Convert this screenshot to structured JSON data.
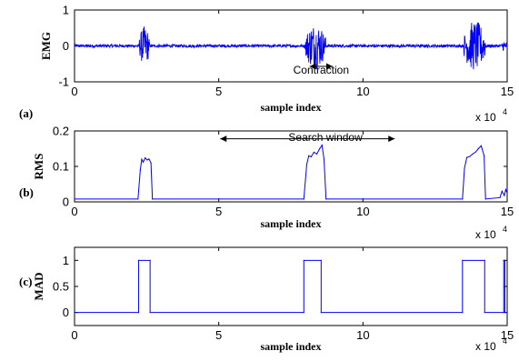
{
  "chart_data": [
    {
      "type": "line",
      "panel_label": "(a)",
      "xlabel": "sample index",
      "ylabel": "EMG",
      "x_multiplier": "x 10",
      "x_multiplier_exp": "4",
      "xlim": [
        0,
        15
      ],
      "ylim": [
        -1,
        1
      ],
      "xticks": [
        "0",
        "5",
        "10",
        "15"
      ],
      "yticks": [
        "-1",
        "0",
        "1"
      ],
      "series_color": "#0000ff",
      "bursts": [
        {
          "start": 2.25,
          "end": 2.6,
          "amplitude": 0.55
        },
        {
          "start": 8.0,
          "end": 8.7,
          "amplitude": 0.65
        },
        {
          "start": 13.5,
          "end": 14.25,
          "amplitude": 0.7
        },
        {
          "start": 14.8,
          "end": 15.0,
          "amplitude": 0.15
        }
      ],
      "baseline_noise": 0.04,
      "annotations": [
        {
          "text": "Contraction",
          "x": 8.55,
          "y": -0.65
        }
      ],
      "arrow": {
        "x1": 8.15,
        "x2": 8.95,
        "y": -0.57
      }
    },
    {
      "type": "line",
      "panel_label": "(b)",
      "xlabel": "sample index",
      "ylabel": "RMS",
      "x_multiplier": "x 10",
      "x_multiplier_exp": "4",
      "xlim": [
        0,
        15
      ],
      "ylim": [
        0,
        0.2
      ],
      "xticks": [
        "0",
        "5",
        "10",
        "15"
      ],
      "yticks": [
        "0",
        "0.1",
        "0.2"
      ],
      "series_color": "#0000ff",
      "x": [
        0,
        2.2,
        2.28,
        2.33,
        2.38,
        2.45,
        2.52,
        2.58,
        2.65,
        2.7,
        7.95,
        8.05,
        8.12,
        8.2,
        8.3,
        8.4,
        8.5,
        8.58,
        8.65,
        8.72,
        13.45,
        13.52,
        13.6,
        13.7,
        13.8,
        13.9,
        14.0,
        14.1,
        14.2,
        14.25,
        14.75,
        14.82,
        14.9,
        14.95,
        15.0
      ],
      "y": [
        0.008,
        0.008,
        0.09,
        0.12,
        0.112,
        0.124,
        0.118,
        0.121,
        0.11,
        0.008,
        0.008,
        0.105,
        0.13,
        0.127,
        0.14,
        0.135,
        0.15,
        0.16,
        0.12,
        0.008,
        0.008,
        0.095,
        0.125,
        0.128,
        0.135,
        0.14,
        0.15,
        0.158,
        0.13,
        0.008,
        0.012,
        0.03,
        0.018,
        0.035,
        0.025
      ],
      "annotations": [
        {
          "text": "Search window",
          "x": 8.7,
          "y": 0.185
        }
      ],
      "arrow": {
        "x1": 5.05,
        "x2": 11.1,
        "y": 0.178
      }
    },
    {
      "type": "line",
      "panel_label": "(c)",
      "xlabel": "sample index",
      "ylabel": "MAD",
      "x_multiplier": "x 10",
      "x_multiplier_exp": "4",
      "xlim": [
        0,
        15
      ],
      "ylim": [
        -0.25,
        1.25
      ],
      "xticks": [
        "0",
        "5",
        "10",
        "15"
      ],
      "yticks": [
        "0",
        "0.5",
        "1"
      ],
      "series_color": "#0000ff",
      "x": [
        0,
        2.22,
        2.22,
        2.62,
        2.62,
        7.95,
        7.95,
        8.55,
        8.55,
        13.45,
        13.45,
        14.22,
        14.22,
        14.88,
        14.88,
        14.92,
        14.92,
        15.0
      ],
      "y": [
        0,
        0,
        1,
        1,
        0,
        0,
        1,
        1,
        0,
        0,
        1,
        1,
        0,
        0,
        1,
        1,
        0,
        0
      ]
    }
  ]
}
